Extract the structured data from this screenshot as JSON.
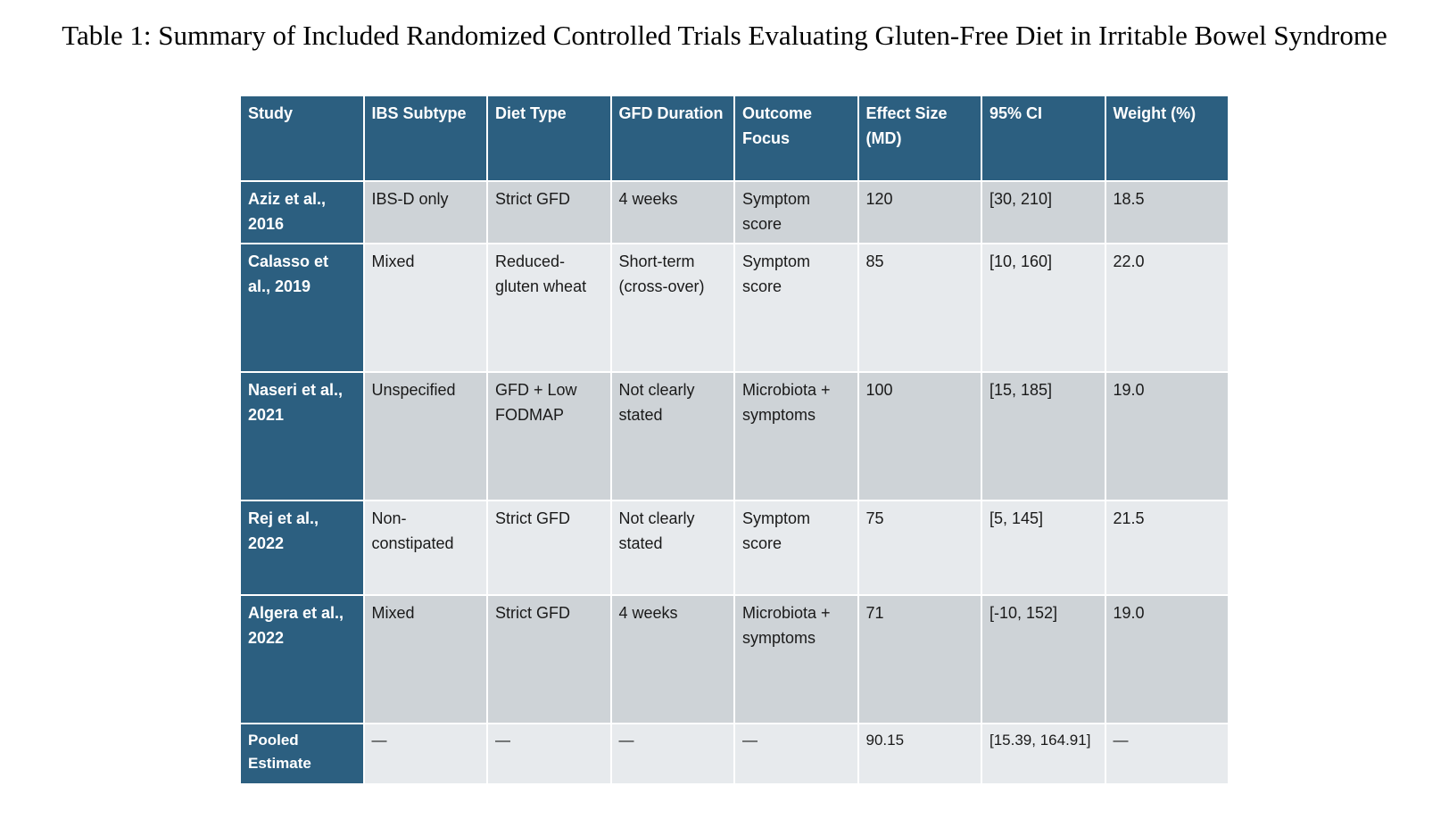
{
  "title": "Table 1: Summary of Included Randomized Controlled Trials Evaluating Gluten-Free Diet in Irritable Bowel Syndrome",
  "colors": {
    "header_bg": "#2c5f80",
    "row_dark": "#ced3d7",
    "row_light": "#e7eaed"
  },
  "table": {
    "headers": [
      "Study",
      "IBS Subtype",
      "Diet Type",
      "GFD Duration",
      "Outcome Focus",
      "Effect Size (MD)",
      "95% CI",
      "Weight (%)"
    ],
    "rows": [
      [
        "Aziz et al., 2016",
        "IBS-D only",
        "Strict GFD",
        "4 weeks",
        "Symptom score",
        "120",
        "[30, 210]",
        "18.5"
      ],
      [
        "Calasso et al., 2019",
        "Mixed",
        "Reduced-gluten wheat",
        "Short-term (cross-over)",
        "Symptom score",
        "85",
        "[10, 160]",
        "22.0"
      ],
      [
        "Naseri et al., 2021",
        "Unspecified",
        "GFD + Low FODMAP",
        "Not clearly stated",
        "Microbiota + symptoms",
        "100",
        "[15, 185]",
        "19.0"
      ],
      [
        "Rej et al., 2022",
        "Non-constipated",
        "Strict GFD",
        "Not clearly stated",
        "Symptom score",
        "75",
        "[5, 145]",
        "21.5"
      ],
      [
        "Algera et al., 2022",
        "Mixed",
        "Strict GFD",
        "4 weeks",
        "Microbiota + symptoms",
        "71",
        "[-10, 152]",
        "19.0"
      ],
      [
        "Pooled Estimate",
        "—",
        "—",
        "—",
        "—",
        "90.15",
        "[15.39, 164.91]",
        "—"
      ]
    ]
  }
}
